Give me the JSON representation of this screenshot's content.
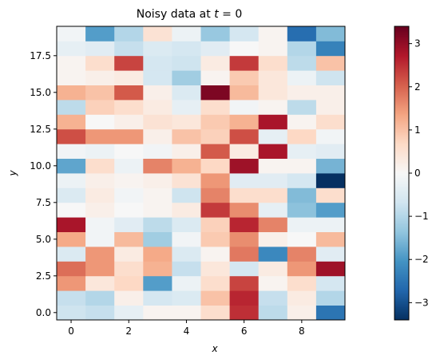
{
  "chart_data": {
    "type": "heatmap",
    "title": "Noisy data at t = 0",
    "title_prefix": "Noisy data at ",
    "title_var": "t",
    "title_suffix": " = 0",
    "xlabel": "x",
    "ylabel": "y",
    "x_cells": 10,
    "y_cells": 20,
    "x_ticks": [
      0,
      2,
      4,
      6,
      8
    ],
    "x_tick_labels": [
      "0",
      "2",
      "4",
      "6",
      "8"
    ],
    "y_ticks": [
      0.0,
      2.5,
      5.0,
      7.5,
      10.0,
      12.5,
      15.0,
      17.5
    ],
    "y_tick_labels": [
      "0.0",
      "2.5",
      "5.0",
      "7.5",
      "10.0",
      "12.5",
      "15.0",
      "17.5"
    ],
    "xlim": [
      -0.5,
      9.5
    ],
    "ylim": [
      -0.5,
      19.5
    ],
    "colormap": "RdBu_r",
    "vmin": -3.4,
    "vmax": 3.4,
    "colorbar_ticks": [
      -3,
      -2,
      -1,
      0,
      1,
      2,
      3
    ],
    "colorbar_tick_labels": [
      "−3",
      "−2",
      "−1",
      "0",
      "1",
      "2",
      "3"
    ],
    "grid": false,
    "values": [
      [
        -0.7,
        -0.8,
        -0.3,
        0.1,
        0.1,
        0.6,
        2.5,
        -0.9,
        0.2,
        -2.5
      ],
      [
        -0.8,
        -1.0,
        0.2,
        -0.6,
        -0.5,
        1.0,
        2.6,
        -0.8,
        0.3,
        -1.0
      ],
      [
        1.5,
        0.4,
        0.7,
        -1.9,
        -0.2,
        0.6,
        2.3,
        0.1,
        0.6,
        -0.6
      ],
      [
        1.9,
        1.5,
        0.6,
        1.2,
        -0.8,
        0.4,
        -0.6,
        0.3,
        1.5,
        2.9
      ],
      [
        -0.5,
        1.5,
        0.3,
        1.3,
        -0.5,
        0.1,
        1.8,
        -2.2,
        1.7,
        -0.4
      ],
      [
        1.3,
        -0.1,
        1.1,
        -1.2,
        -0.1,
        0.9,
        1.6,
        0.2,
        0.0,
        1.1
      ],
      [
        2.8,
        -0.1,
        -0.4,
        -0.9,
        -0.5,
        0.8,
        2.6,
        1.7,
        -0.2,
        -0.2
      ],
      [
        0.0,
        0.2,
        0.0,
        0.1,
        0.3,
        2.4,
        1.6,
        -0.3,
        -1.4,
        -1.9
      ],
      [
        -0.5,
        0.3,
        -0.1,
        0.1,
        -0.7,
        1.7,
        0.6,
        0.6,
        -1.5,
        0.6
      ],
      [
        -0.2,
        0.2,
        0.1,
        0.2,
        0.5,
        1.5,
        -0.4,
        -0.4,
        -0.6,
        -3.4
      ],
      [
        -1.8,
        0.6,
        -0.2,
        1.7,
        1.2,
        0.7,
        2.9,
        0.1,
        0.1,
        -1.6
      ],
      [
        -0.1,
        -0.2,
        0.0,
        -0.1,
        0.2,
        2.1,
        0.3,
        2.8,
        -0.3,
        -0.4
      ],
      [
        2.2,
        1.5,
        1.5,
        0.2,
        1.0,
        0.8,
        2.2,
        -0.3,
        0.7,
        -0.1
      ],
      [
        1.2,
        0.0,
        0.2,
        0.5,
        0.4,
        0.9,
        1.2,
        2.8,
        0.1,
        0.6
      ],
      [
        -0.9,
        0.8,
        0.6,
        0.3,
        -0.3,
        0.6,
        -0.1,
        0.1,
        -0.9,
        0.2
      ],
      [
        1.2,
        1.0,
        2.1,
        0.2,
        -0.5,
        3.2,
        1.1,
        0.4,
        0.2,
        0.2
      ],
      [
        0.1,
        0.2,
        0.3,
        -0.6,
        -1.2,
        0.1,
        0.9,
        0.4,
        -0.2,
        -0.7
      ],
      [
        0.1,
        0.6,
        2.3,
        -0.6,
        -0.7,
        0.3,
        2.4,
        0.6,
        -0.9,
        1.0
      ],
      [
        -0.3,
        -0.4,
        -0.8,
        -0.5,
        -0.6,
        -0.4,
        0.0,
        0.1,
        -1.0,
        -2.3
      ],
      [
        -0.1,
        -1.9,
        -1.0,
        0.5,
        -0.2,
        -1.3,
        -0.6,
        0.1,
        -2.6,
        -1.5
      ]
    ]
  }
}
